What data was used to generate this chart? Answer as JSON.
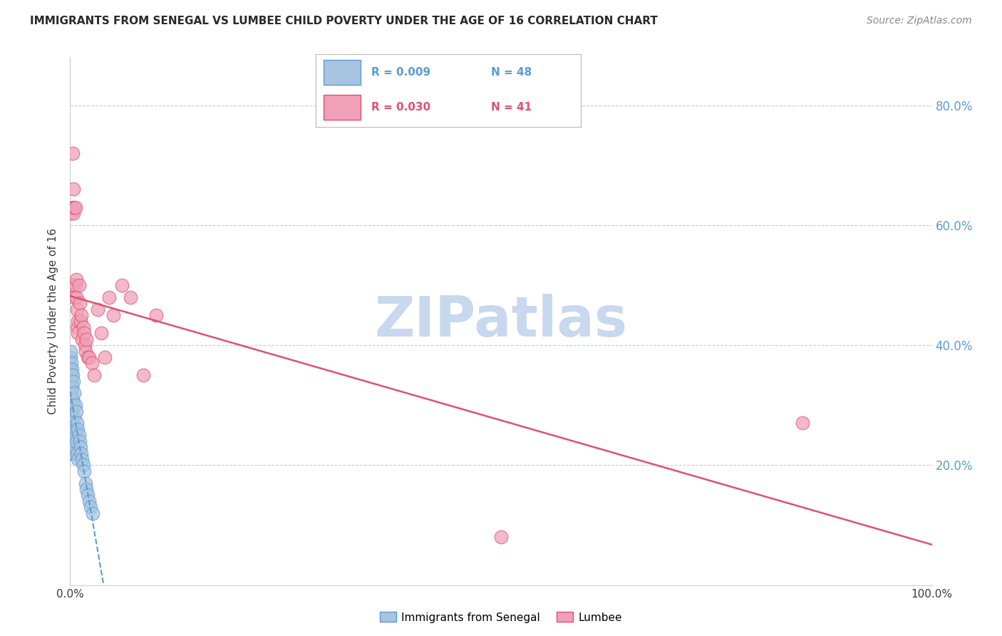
{
  "title": "IMMIGRANTS FROM SENEGAL VS LUMBEE CHILD POVERTY UNDER THE AGE OF 16 CORRELATION CHART",
  "source": "Source: ZipAtlas.com",
  "ylabel": "Child Poverty Under the Age of 16",
  "legend_label1": "Immigrants from Senegal",
  "legend_label2": "Lumbee",
  "legend_r1": "R = 0.009",
  "legend_n1": "N = 48",
  "legend_r2": "R = 0.030",
  "legend_n2": "N = 41",
  "xlim": [
    0.0,
    1.0
  ],
  "ylim": [
    0.0,
    0.88
  ],
  "xticklabels": [
    "0.0%",
    "",
    "",
    "",
    "",
    "",
    "",
    "",
    "",
    "",
    "100.0%"
  ],
  "color_blue": "#a8c4e0",
  "color_pink": "#f0a0b8",
  "line_color_blue": "#5b9bd5",
  "line_color_pink": "#e05070",
  "watermark": "ZIPatlas",
  "watermark_color": "#c8d8ee",
  "senegal_x": [
    0.0005,
    0.0005,
    0.0008,
    0.001,
    0.001,
    0.001,
    0.001,
    0.001,
    0.001,
    0.0015,
    0.0015,
    0.002,
    0.002,
    0.002,
    0.002,
    0.0025,
    0.003,
    0.003,
    0.003,
    0.003,
    0.0035,
    0.004,
    0.004,
    0.004,
    0.005,
    0.005,
    0.005,
    0.006,
    0.006,
    0.007,
    0.007,
    0.008,
    0.008,
    0.009,
    0.009,
    0.01,
    0.011,
    0.012,
    0.013,
    0.014,
    0.015,
    0.016,
    0.018,
    0.019,
    0.02,
    0.022,
    0.024,
    0.026
  ],
  "senegal_y": [
    0.38,
    0.36,
    0.39,
    0.37,
    0.35,
    0.32,
    0.29,
    0.26,
    0.22,
    0.34,
    0.3,
    0.36,
    0.33,
    0.28,
    0.24,
    0.27,
    0.35,
    0.31,
    0.27,
    0.22,
    0.25,
    0.34,
    0.3,
    0.25,
    0.32,
    0.28,
    0.23,
    0.3,
    0.26,
    0.29,
    0.24,
    0.27,
    0.22,
    0.26,
    0.21,
    0.25,
    0.24,
    0.23,
    0.22,
    0.21,
    0.2,
    0.19,
    0.17,
    0.16,
    0.15,
    0.14,
    0.13,
    0.12
  ],
  "lumbee_x": [
    0.001,
    0.002,
    0.003,
    0.003,
    0.004,
    0.004,
    0.005,
    0.005,
    0.006,
    0.006,
    0.007,
    0.007,
    0.008,
    0.008,
    0.009,
    0.009,
    0.01,
    0.011,
    0.012,
    0.013,
    0.014,
    0.015,
    0.016,
    0.017,
    0.018,
    0.019,
    0.02,
    0.022,
    0.025,
    0.028,
    0.032,
    0.036,
    0.04,
    0.045,
    0.05,
    0.06,
    0.07,
    0.085,
    0.1,
    0.5,
    0.85
  ],
  "lumbee_y": [
    0.62,
    0.63,
    0.72,
    0.5,
    0.62,
    0.66,
    0.63,
    0.48,
    0.5,
    0.63,
    0.48,
    0.51,
    0.46,
    0.43,
    0.44,
    0.42,
    0.5,
    0.47,
    0.44,
    0.45,
    0.41,
    0.43,
    0.42,
    0.4,
    0.39,
    0.41,
    0.38,
    0.38,
    0.37,
    0.35,
    0.46,
    0.42,
    0.38,
    0.48,
    0.45,
    0.5,
    0.48,
    0.35,
    0.45,
    0.08,
    0.27
  ]
}
